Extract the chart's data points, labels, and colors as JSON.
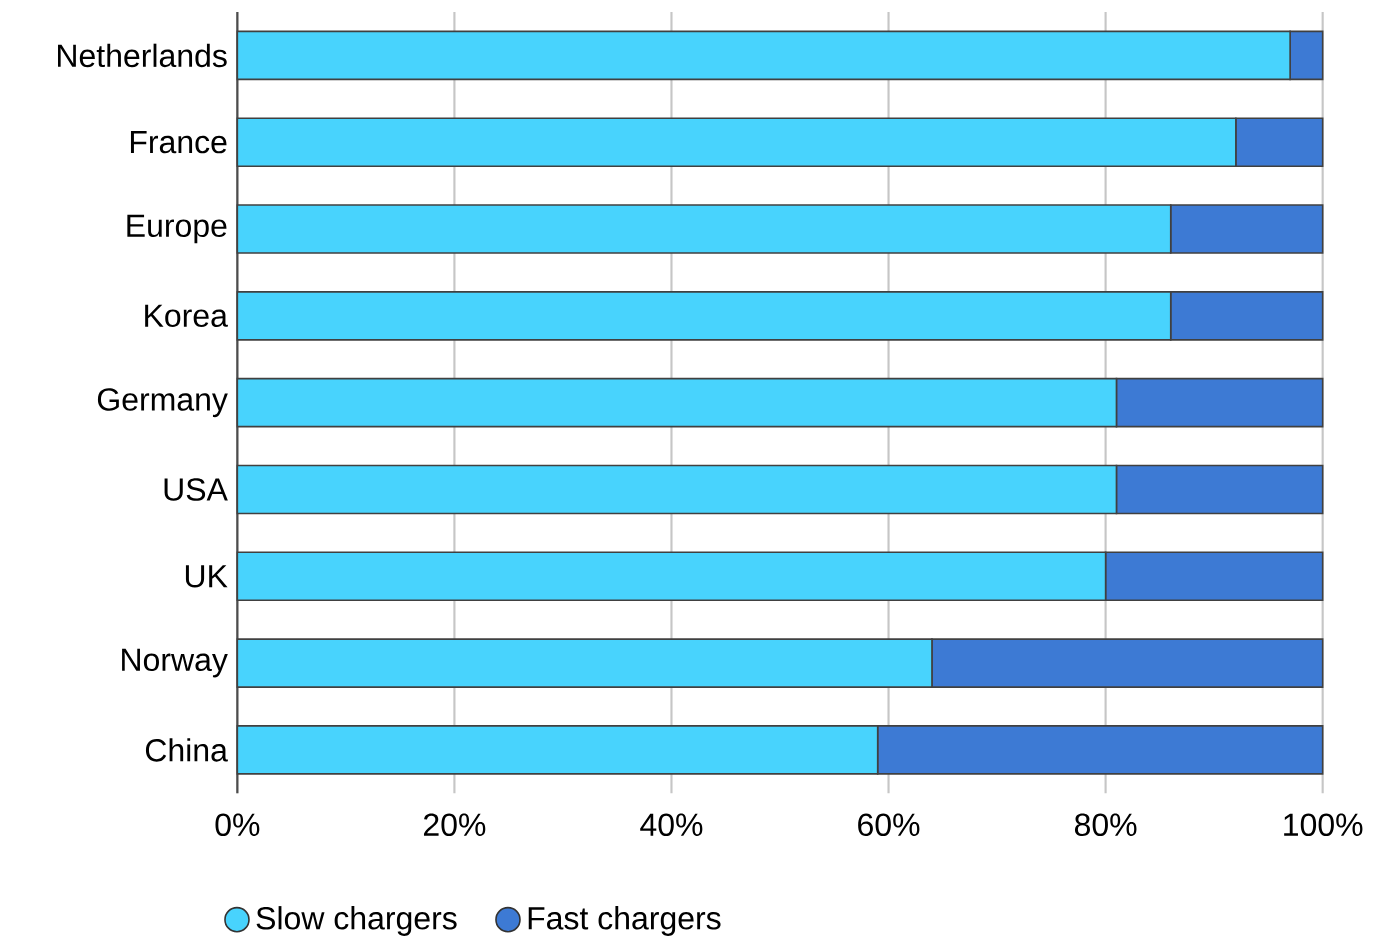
{
  "chart_data": {
    "type": "bar",
    "orientation": "horizontal",
    "stacked": true,
    "categories": [
      "Netherlands",
      "France",
      "Europe",
      "Korea",
      "Germany",
      "USA",
      "UK",
      "Norway",
      "China"
    ],
    "series": [
      {
        "name": "Slow chargers",
        "color": "#48d3fd",
        "values": [
          97,
          92,
          86,
          86,
          81,
          81,
          80,
          64,
          59
        ]
      },
      {
        "name": "Fast chargers",
        "color": "#3d7ad4",
        "values": [
          3,
          8,
          14,
          14,
          19,
          19,
          20,
          36,
          41
        ]
      }
    ],
    "xlim": [
      0,
      100
    ],
    "xticks": [
      {
        "value": 0,
        "label": "0%"
      },
      {
        "value": 20,
        "label": "20%"
      },
      {
        "value": 40,
        "label": "40%"
      },
      {
        "value": 60,
        "label": "60%"
      },
      {
        "value": 80,
        "label": "80%"
      },
      {
        "value": 100,
        "label": "100%"
      }
    ],
    "grid": "x",
    "legend": "bottom left"
  }
}
